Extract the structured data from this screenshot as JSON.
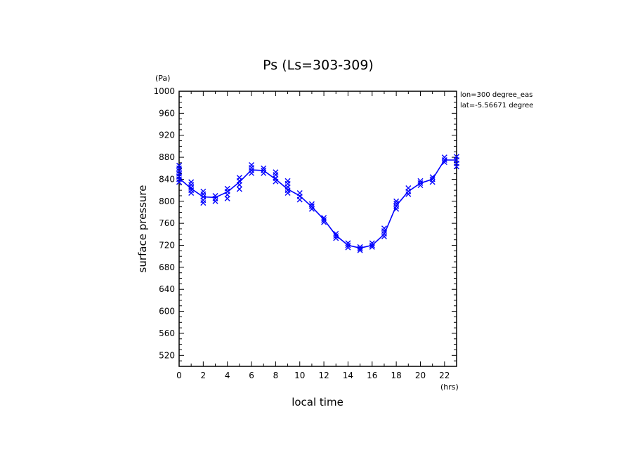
{
  "chart_data": {
    "type": "line",
    "title": "Ps (Ls=303-309)",
    "xlabel": "local time",
    "ylabel": "surface pressure",
    "xunit": "(hrs)",
    "yunit": "(Pa)",
    "xlim": [
      0,
      23
    ],
    "ylim": [
      500,
      1000
    ],
    "xticks": [
      0,
      2,
      4,
      6,
      8,
      10,
      12,
      14,
      16,
      18,
      20,
      22
    ],
    "yticks": [
      520,
      560,
      600,
      640,
      680,
      720,
      760,
      800,
      840,
      880,
      920,
      960,
      1000
    ],
    "annotations": [
      "lon=300 degree_eas",
      "lat=-5.56671 degree"
    ],
    "colors": {
      "series": "#0000ff"
    },
    "grid": false,
    "series": [
      {
        "x": [
          0,
          1,
          2,
          3,
          4,
          5,
          6,
          7,
          8,
          9,
          10,
          11,
          12,
          13,
          14,
          15,
          16,
          17,
          18,
          19,
          20,
          21,
          22,
          23
        ],
        "values": [
          842,
          823,
          808,
          807,
          817,
          835,
          857,
          856,
          840,
          822,
          810,
          790,
          767,
          738,
          720,
          715,
          720,
          740,
          792,
          818,
          833,
          840,
          875,
          875
        ]
      }
    ],
    "samples": [
      {
        "x": 0,
        "y": [
          835,
          840,
          845,
          850,
          855,
          860,
          865
        ]
      },
      {
        "x": 1,
        "y": [
          815,
          820,
          825,
          830,
          835
        ]
      },
      {
        "x": 2,
        "y": [
          797,
          802,
          808,
          813,
          818
        ]
      },
      {
        "x": 3,
        "y": [
          800,
          805,
          810
        ]
      },
      {
        "x": 4,
        "y": [
          805,
          812,
          818,
          823
        ]
      },
      {
        "x": 5,
        "y": [
          822,
          830,
          837,
          843
        ]
      },
      {
        "x": 6,
        "y": [
          851,
          856,
          861,
          866
        ]
      },
      {
        "x": 7,
        "y": [
          851,
          856,
          860
        ]
      },
      {
        "x": 8,
        "y": [
          836,
          842,
          848,
          853
        ]
      },
      {
        "x": 9,
        "y": [
          815,
          820,
          826,
          832,
          837
        ]
      },
      {
        "x": 10,
        "y": [
          803,
          809,
          815
        ]
      },
      {
        "x": 11,
        "y": [
          786,
          791,
          795
        ]
      },
      {
        "x": 12,
        "y": [
          762,
          766,
          770
        ]
      },
      {
        "x": 13,
        "y": [
          733,
          737,
          741
        ]
      },
      {
        "x": 14,
        "y": [
          716,
          720,
          724
        ]
      },
      {
        "x": 15,
        "y": [
          711,
          714,
          717
        ]
      },
      {
        "x": 16,
        "y": [
          717,
          720,
          724
        ]
      },
      {
        "x": 17,
        "y": [
          736,
          741,
          746,
          751
        ]
      },
      {
        "x": 18,
        "y": [
          786,
          791,
          796,
          800
        ]
      },
      {
        "x": 19,
        "y": [
          813,
          818,
          824
        ]
      },
      {
        "x": 20,
        "y": [
          829,
          833,
          837
        ]
      },
      {
        "x": 21,
        "y": [
          835,
          840,
          844
        ]
      },
      {
        "x": 22,
        "y": [
          871,
          875,
          880
        ]
      },
      {
        "x": 23,
        "y": [
          863,
          869,
          875,
          881
        ]
      }
    ]
  }
}
